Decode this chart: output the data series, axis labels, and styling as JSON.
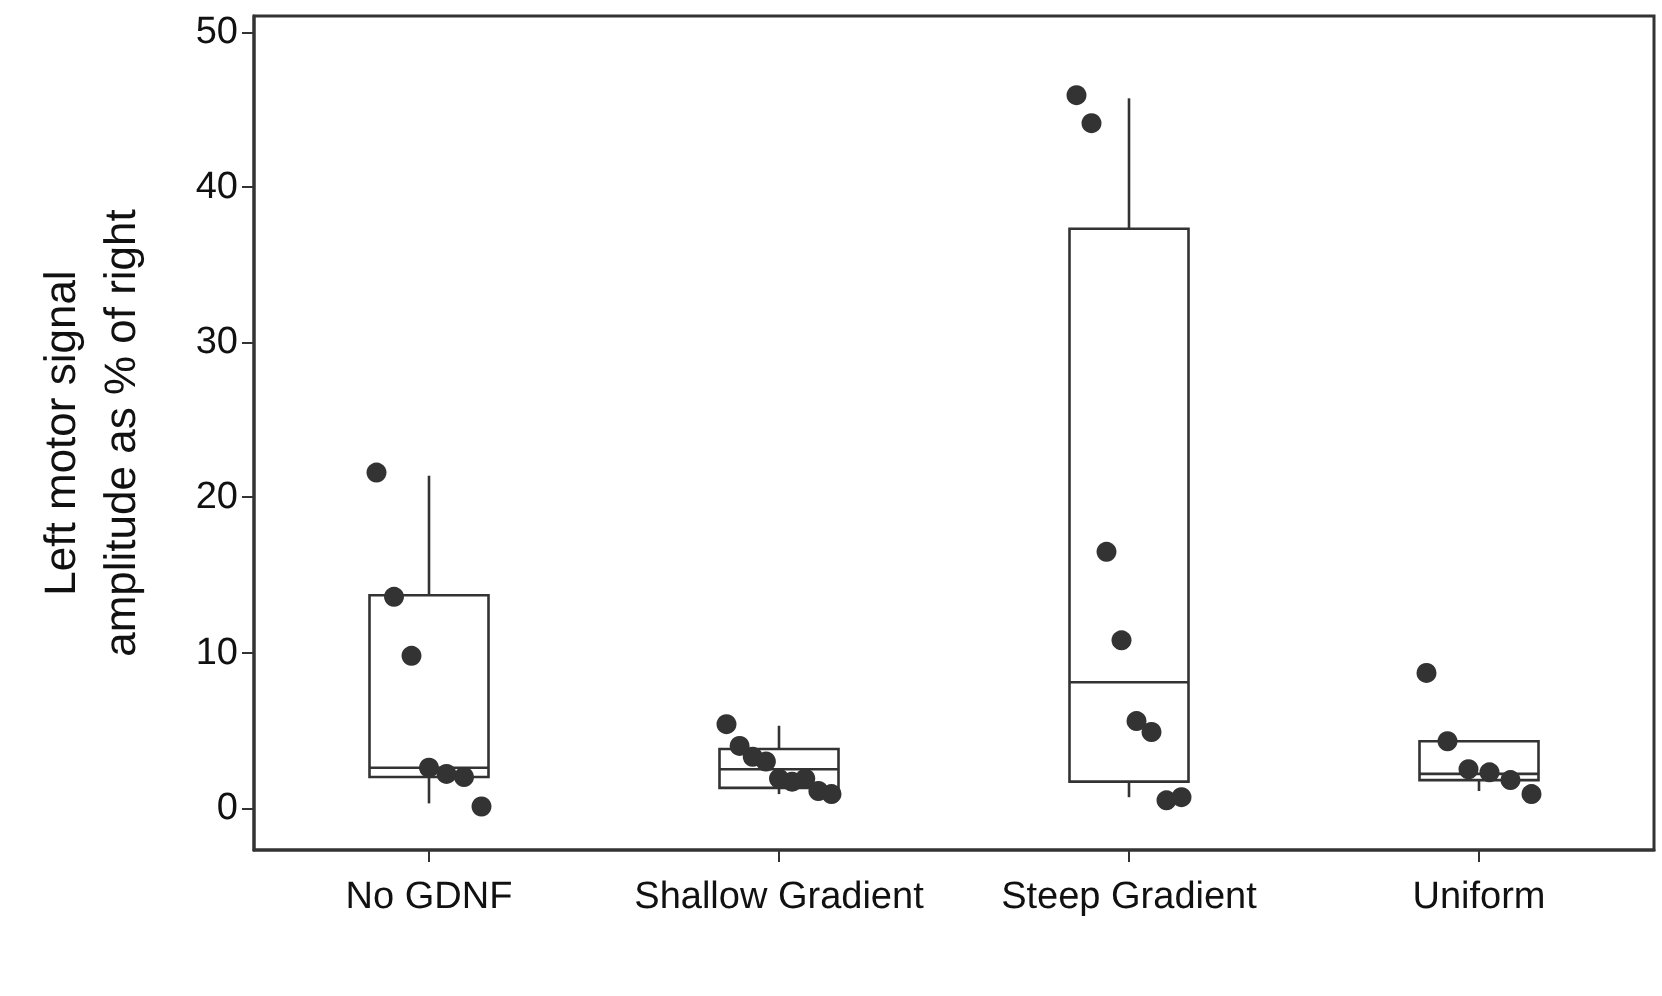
{
  "chart_data": {
    "type": "box",
    "ylabel": "Left motor signal\namplitude as % of right",
    "categories": [
      "No GDNF",
      "Shallow Gradient",
      "Steep Gradient",
      "Uniform"
    ],
    "ylim": [
      -2.7,
      51
    ],
    "yticks": [
      0,
      10,
      20,
      30,
      40,
      50
    ],
    "grid": false,
    "series": [
      {
        "color": "#333333",
        "boxes": [
          {
            "low": 0.3,
            "q1": 2.0,
            "median": 2.6,
            "q3": 13.7,
            "high": 21.4
          },
          {
            "low": 0.9,
            "q1": 1.3,
            "median": 2.5,
            "q3": 3.8,
            "high": 5.3
          },
          {
            "low": 0.7,
            "q1": 1.7,
            "median": 8.1,
            "q3": 37.3,
            "high": 45.7
          },
          {
            "low": 1.1,
            "q1": 1.8,
            "median": 2.2,
            "q3": 4.3,
            "high": 4.3
          }
        ]
      },
      {
        "type": "scatter",
        "color": "#333333",
        "marker": "circle",
        "x": [
          "No GDNF",
          "No GDNF",
          "No GDNF",
          "No GDNF",
          "No GDNF",
          "No GDNF",
          "No GDNF",
          "Shallow Gradient",
          "Shallow Gradient",
          "Shallow Gradient",
          "Shallow Gradient",
          "Shallow Gradient",
          "Shallow Gradient",
          "Shallow Gradient",
          "Shallow Gradient",
          "Shallow Gradient",
          "Steep Gradient",
          "Steep Gradient",
          "Steep Gradient",
          "Steep Gradient",
          "Steep Gradient",
          "Steep Gradient",
          "Steep Gradient",
          "Steep Gradient",
          "Uniform",
          "Uniform",
          "Uniform",
          "Uniform",
          "Uniform",
          "Uniform"
        ],
        "values": [
          21.6,
          13.6,
          9.8,
          2.6,
          2.2,
          2.0,
          0.1,
          5.4,
          4.0,
          3.3,
          3.0,
          1.9,
          1.7,
          1.9,
          1.1,
          0.9,
          45.9,
          44.1,
          16.5,
          10.8,
          5.6,
          4.9,
          0.5,
          0.7,
          8.7,
          4.3,
          2.5,
          2.3,
          1.8,
          0.9
        ]
      }
    ]
  }
}
